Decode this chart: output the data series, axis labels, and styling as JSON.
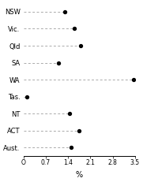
{
  "categories": [
    "NSW",
    "Vic.",
    "Qld",
    "SA",
    "WA",
    "Tas.",
    "NT",
    "ACT",
    "Aust."
  ],
  "values": [
    1.3,
    1.6,
    1.8,
    1.1,
    3.45,
    0.1,
    1.45,
    1.75,
    1.5
  ],
  "dot_color": "#000000",
  "line_color": "#aaaaaa",
  "xlabel": "%",
  "xlim": [
    0,
    3.5
  ],
  "xticks": [
    0,
    0.7,
    1.4,
    2.1,
    2.8,
    3.5
  ],
  "xtick_labels": [
    "O",
    "0.7",
    "1.4",
    "2.1",
    "2.8",
    "3.5"
  ],
  "background_color": "#ffffff",
  "dot_size": 8,
  "line_style": "--",
  "figwidth": 1.81,
  "figheight": 2.31,
  "dpi": 100,
  "ylabel_fontsize": 6.0,
  "xlabel_fontsize": 7.0,
  "tick_fontsize": 5.5
}
